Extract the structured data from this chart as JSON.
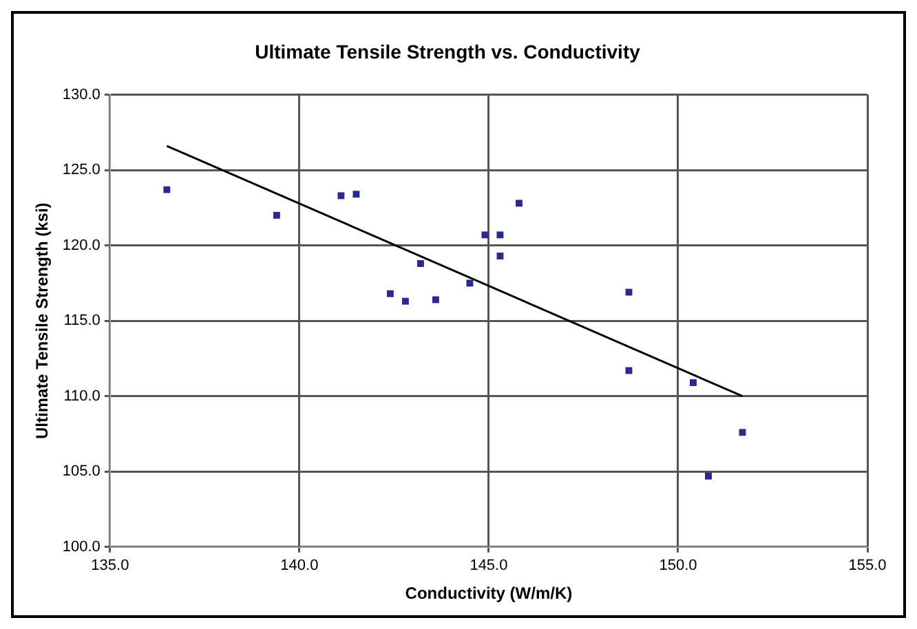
{
  "chart_data": {
    "type": "scatter",
    "title": "Ultimate Tensile Strength vs. Conductivity",
    "xlabel": "Conductivity (W/m/K)",
    "ylabel": "Ultimate Tensile Strength (ksi)",
    "series": [
      {
        "marker": "square",
        "color": "#2a2a8c",
        "x": [
          136.5,
          139.4,
          141.1,
          141.5,
          143.2,
          142.4,
          142.8,
          143.6,
          144.5,
          144.9,
          145.3,
          145.3,
          145.8,
          148.7,
          148.7,
          150.4,
          151.7,
          150.8
        ],
        "values": [
          123.7,
          122.0,
          123.3,
          123.4,
          118.8,
          116.8,
          116.3,
          116.4,
          117.5,
          120.7,
          120.7,
          119.3,
          122.8,
          116.9,
          111.7,
          110.9,
          107.6,
          104.7
        ]
      },
      {
        "type": "line",
        "marker": "none",
        "color": "#000000",
        "x": [
          136.5,
          151.7
        ],
        "values": [
          126.6,
          110.0
        ]
      }
    ],
    "grid": true,
    "legend": false,
    "xlim": [
      135,
      155
    ],
    "xticks": [
      {
        "value": 135,
        "label": "135.0"
      },
      {
        "value": 140,
        "label": "140.0"
      },
      {
        "value": 145,
        "label": "145.0"
      },
      {
        "value": 150,
        "label": "150.0"
      },
      {
        "value": 155,
        "label": "155.0"
      }
    ],
    "ylim": [
      100,
      130
    ],
    "yticks": [
      {
        "value": 100,
        "label": "100.0"
      },
      {
        "value": 105,
        "label": "105.0"
      },
      {
        "value": 110,
        "label": "110.0"
      },
      {
        "value": 115,
        "label": "115.0"
      },
      {
        "value": 120,
        "label": "120.0"
      },
      {
        "value": 125,
        "label": "125.0"
      },
      {
        "value": 130,
        "label": "130.0"
      }
    ]
  }
}
